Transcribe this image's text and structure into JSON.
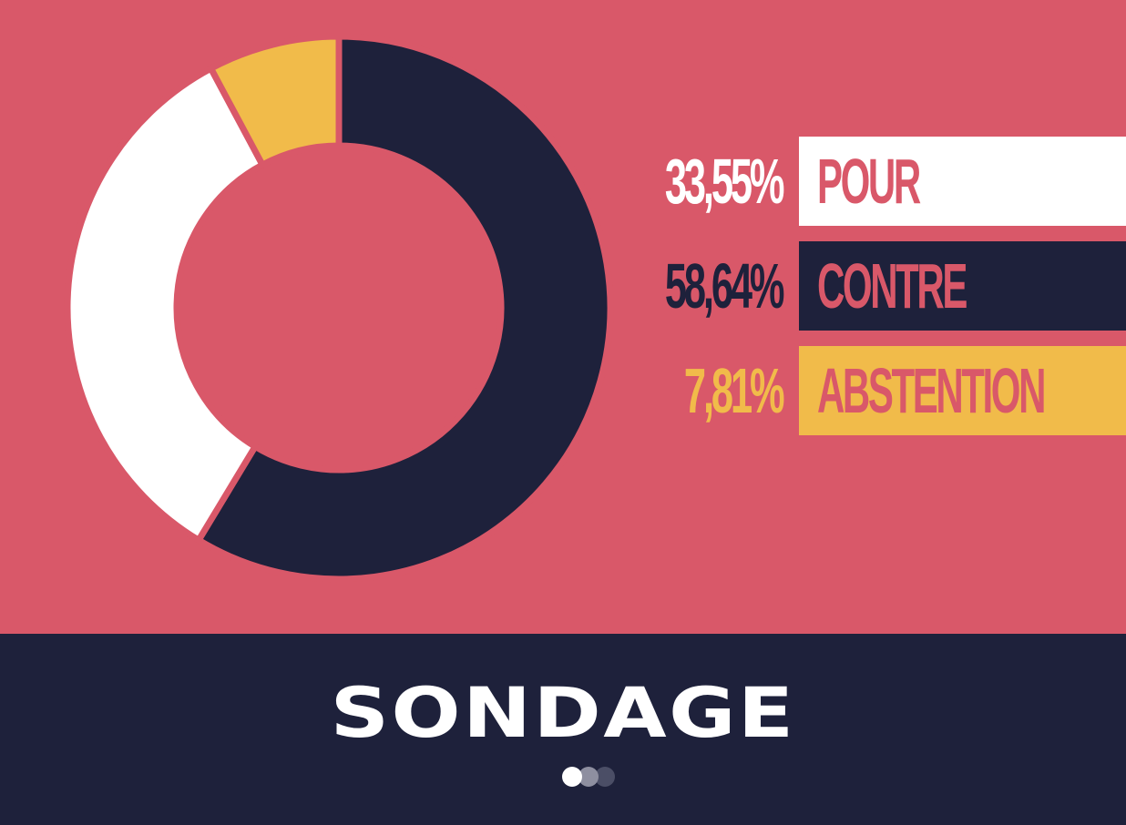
{
  "chart_data": {
    "type": "pie",
    "title": "SONDAGE",
    "slices": [
      {
        "label": "CONTRE",
        "value": 58.64,
        "value_text": "58,64%",
        "color": "#1e213b"
      },
      {
        "label": "POUR",
        "value": 33.55,
        "value_text": "33,55%",
        "color": "#ffffff"
      },
      {
        "label": "ABSTENTION",
        "value": 7.81,
        "value_text": "7,81%",
        "color": "#f1bb4a"
      }
    ],
    "donut": true
  },
  "legend": [
    {
      "pct": "33,55%",
      "label": "POUR",
      "pct_color": "#ffffff",
      "box_color": "#ffffff",
      "label_color": "#d95869"
    },
    {
      "pct": "58,64%",
      "label": "CONTRE",
      "pct_color": "#1e213b",
      "box_color": "#1e213b",
      "label_color": "#d95869"
    },
    {
      "pct": "7,81%",
      "label": "ABSTENTION",
      "pct_color": "#f1bb4a",
      "box_color": "#f1bb4a",
      "label_color": "#d95869"
    }
  ],
  "footer": {
    "title": "SONDAGE",
    "pager": {
      "count": 3,
      "active": 1
    }
  },
  "colors": {
    "background": "#d95869",
    "navy": "#1e213b",
    "white": "#ffffff",
    "yellow": "#f1bb4a"
  }
}
